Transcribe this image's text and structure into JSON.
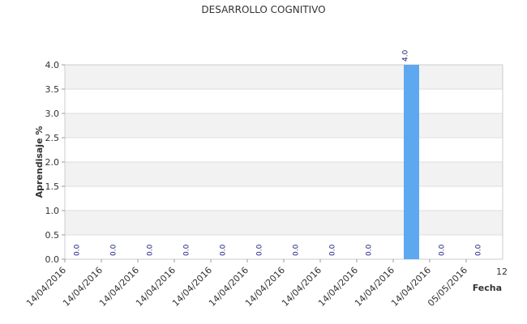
{
  "chart_data": {
    "type": "bar",
    "title": "DESARROLLO COGNITIVO",
    "xlabel": "Fecha",
    "ylabel": "Aprendisaje %",
    "ylim": [
      0,
      4.0
    ],
    "yticks": [
      "0.0",
      "0.5",
      "1.0",
      "1.5",
      "2.0",
      "2.5",
      "3.0",
      "3.5",
      "4.0"
    ],
    "categories": [
      "14/04/2016",
      "14/04/2016",
      "14/04/2016",
      "14/04/2016",
      "14/04/2016",
      "14/04/2016",
      "14/04/2016",
      "14/04/2016",
      "14/04/2016",
      "14/04/2016",
      "14/04/2016",
      "05/05/2016"
    ],
    "values": [
      0.0,
      0.0,
      0.0,
      0.0,
      0.0,
      0.0,
      0.0,
      0.0,
      0.0,
      4.0,
      0.0,
      0.0
    ],
    "value_labels": [
      "0.0",
      "0.0",
      "0.0",
      "0.0",
      "0.0",
      "0.0",
      "0.0",
      "0.0",
      "0.0",
      "4.0",
      "0.0",
      "0.0"
    ],
    "last_tick": "12",
    "grid": true,
    "legend": "none",
    "colors": {
      "bar": "#5ea8ef",
      "band": "#f2f2f2",
      "grid": "#dddddd",
      "value_label": "#1a1a80",
      "text": "#333333"
    }
  }
}
